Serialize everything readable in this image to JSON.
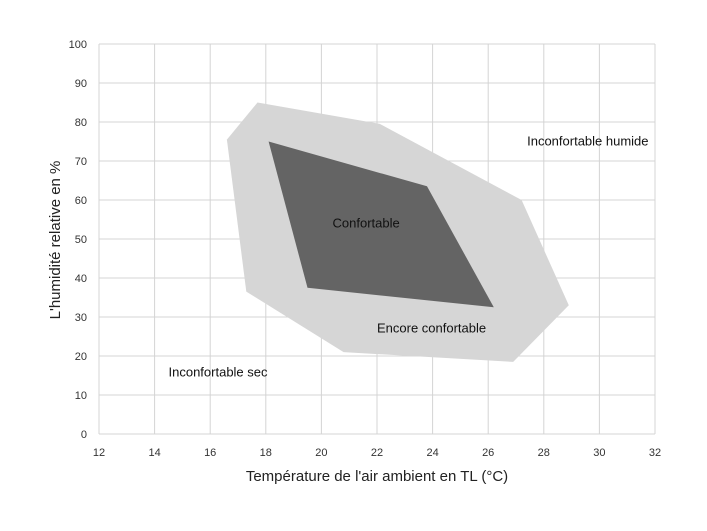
{
  "chart_data": {
    "type": "area",
    "xlabel": "Température de l'air ambient en TL (°C)",
    "ylabel": "L'humidité relative en %",
    "xlim": [
      12,
      32
    ],
    "ylim": [
      0,
      100
    ],
    "xticks": [
      12,
      14,
      16,
      18,
      20,
      22,
      24,
      26,
      28,
      30,
      32
    ],
    "yticks": [
      0,
      10,
      20,
      30,
      40,
      50,
      60,
      70,
      80,
      90,
      100
    ],
    "grid": true,
    "regions": [
      {
        "name": "Encore confortable",
        "color": "#d6d6d6",
        "points": [
          [
            17.7,
            85
          ],
          [
            22.1,
            79.5
          ],
          [
            27.2,
            60
          ],
          [
            28.9,
            33
          ],
          [
            26.9,
            18.5
          ],
          [
            20.8,
            21
          ],
          [
            17.3,
            36.5
          ],
          [
            16.6,
            75.5
          ]
        ]
      },
      {
        "name": "Confortable",
        "color": "#646464",
        "points": [
          [
            18.1,
            75
          ],
          [
            23.8,
            63.5
          ],
          [
            26.2,
            32.5
          ],
          [
            19.5,
            37.5
          ]
        ]
      }
    ],
    "annotations": [
      {
        "text": "Inconfortable humide",
        "x": 27.4,
        "y": 74
      },
      {
        "text": "Confortable",
        "x": 20.4,
        "y": 53
      },
      {
        "text": "Encore confortable",
        "x": 22.0,
        "y": 26
      },
      {
        "text": "Inconfortable sec",
        "x": 14.5,
        "y": 14.8
      }
    ]
  }
}
